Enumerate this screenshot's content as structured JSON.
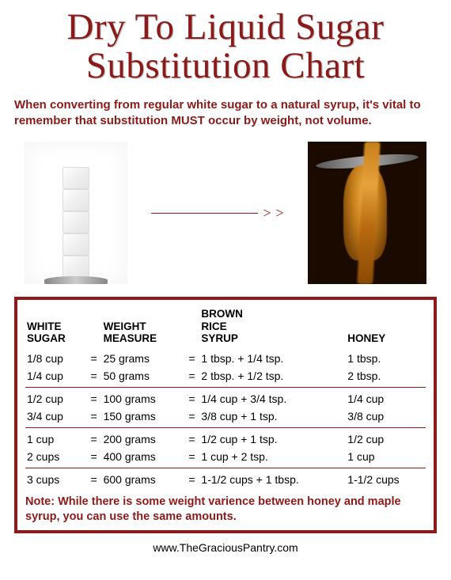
{
  "title_line1": "Dry To Liquid Sugar",
  "title_line2": "Substitution Chart",
  "intro": "When converting from regular white sugar to a natural syrup, it's vital to remember that substitution MUST occur by weight, not volume.",
  "arrow_head": ">",
  "gt_symbol": ">",
  "table": {
    "headers": {
      "white_sugar_l1": "WHITE",
      "white_sugar_l2": "SUGAR",
      "weight_l1": "WEIGHT",
      "weight_l2": "MEASURE",
      "brs_l1": "BROWN",
      "brs_l2": "RICE",
      "brs_l3": "SYRUP",
      "honey": "HONEY"
    },
    "colors": {
      "border": "#8b1a1a",
      "text": "#000000",
      "accent": "#8b1a1a"
    },
    "groups": [
      [
        {
          "ws": "1/8 cup",
          "wt": "25 grams",
          "brs": "1 tbsp. + 1/4 tsp.",
          "h": "1 tbsp."
        },
        {
          "ws": "1/4 cup",
          "wt": "50 grams",
          "brs": "2 tbsp. + 1/2 tsp.",
          "h": "2 tbsp."
        }
      ],
      [
        {
          "ws": "1/2 cup",
          "wt": "100 grams",
          "brs": "1/4 cup + 3/4 tsp.",
          "h": "1/4 cup"
        },
        {
          "ws": "3/4 cup",
          "wt": "150 grams",
          "brs": "3/8 cup + 1 tsp.",
          "h": "3/8 cup"
        }
      ],
      [
        {
          "ws": "1 cup",
          "wt": "200 grams",
          "brs": "1/2 cup + 1 tsp.",
          "h": "1/2 cup"
        },
        {
          "ws": "2 cups",
          "wt": "400 grams",
          "brs": "1 cup + 2 tsp.",
          "h": "1 cup"
        }
      ],
      [
        {
          "ws": "3 cups",
          "wt": "600 grams",
          "brs": "1-1/2 cups + 1 tbsp.",
          "h": "1-1/2 cups"
        }
      ]
    ]
  },
  "note": "Note: While there is some weight varience between honey and maple syrup, you can use the same amounts.",
  "footer": "www.TheGraciousPantry.com",
  "eq": "="
}
